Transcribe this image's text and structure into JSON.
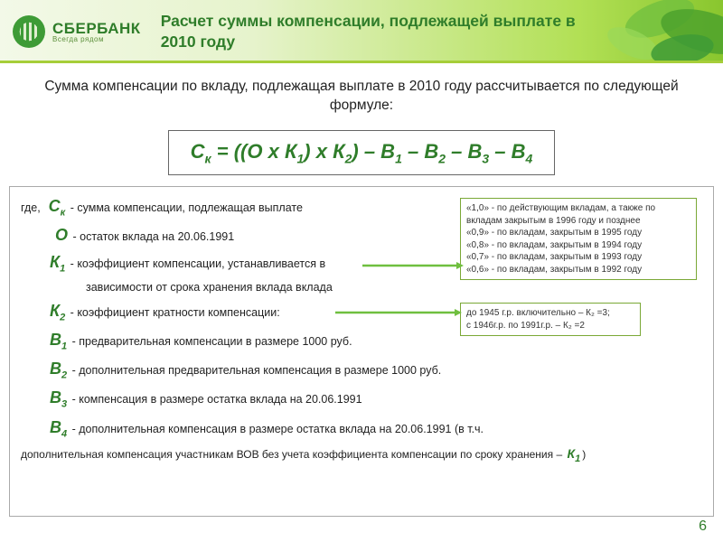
{
  "logo": {
    "main": "СБЕРБАНК",
    "sub": "Всегда рядом"
  },
  "title": "Расчет суммы компенсации, подлежащей выплате в 2010 году",
  "intro": "Сумма компенсации по вкладу, подлежащая выплате в 2010 году рассчитывается по следующей формуле:",
  "formula": {
    "expr_html": "С<sub>к</sub> = ((О х К<sub>1</sub>) х К<sub>2</sub>) – В<sub>1</sub> – В<sub>2</sub> – В<sub>3</sub> – В<sub>4</sub>"
  },
  "defs": {
    "where": "где,",
    "ck": "сумма компенсации, подлежащая выплате",
    "o": "остаток вклада на 20.06.1991",
    "k1": "коэффициент компенсации, устанавливается в",
    "k1_line2": "зависимости от срока хранения вклада вклада",
    "k2": "коэффициент кратности компенсации:",
    "b1": "предварительная компенсации в размере 1000 руб.",
    "b2": "дополнительная предварительная компенсация в размере 1000 руб.",
    "b3": "компенсация в размере остатка вклада на 20.06.1991",
    "b4": "дополнительная компенсация в размере остатка вклада на 20.06.1991 (в т.ч.",
    "b4_note": "дополнительная компенсация участникам ВОВ без учета коэффициента компенсации по сроку хранения – ",
    "b4_note_tail": ")"
  },
  "symbols": {
    "Ck": "С<sub>к</sub>",
    "O": "О",
    "K1": "К<sub>1</sub>",
    "K2": "К<sub>2</sub>",
    "B1": "В<sub>1</sub>",
    "B2": "В<sub>2</sub>",
    "B3": "В<sub>3</sub>",
    "B4": "В<sub>4</sub>"
  },
  "note_k1": {
    "lines": [
      "«1,0» -  по действующим вкладам, а также по вкладам закрытым в 1996 году и позднее",
      "«0,9» -  по вкладам, закрытым в 1995 году",
      "«0,8» -  по вкладам, закрытым в 1994 году",
      "«0,7» -  по вкладам, закрытым в 1993 году",
      "«0,6» -  по вкладам, закрытым в 1992 году"
    ]
  },
  "note_k2": {
    "lines": [
      "до 1945 г.р. включительно – К₂ =3;",
      "с 1946г.р. по 1991г.р. – К₂ =2"
    ]
  },
  "page_number": "6",
  "colors": {
    "brand_green": "#2f7d2a",
    "accent_green": "#6fbf3f",
    "box_border": "#7aa836"
  }
}
